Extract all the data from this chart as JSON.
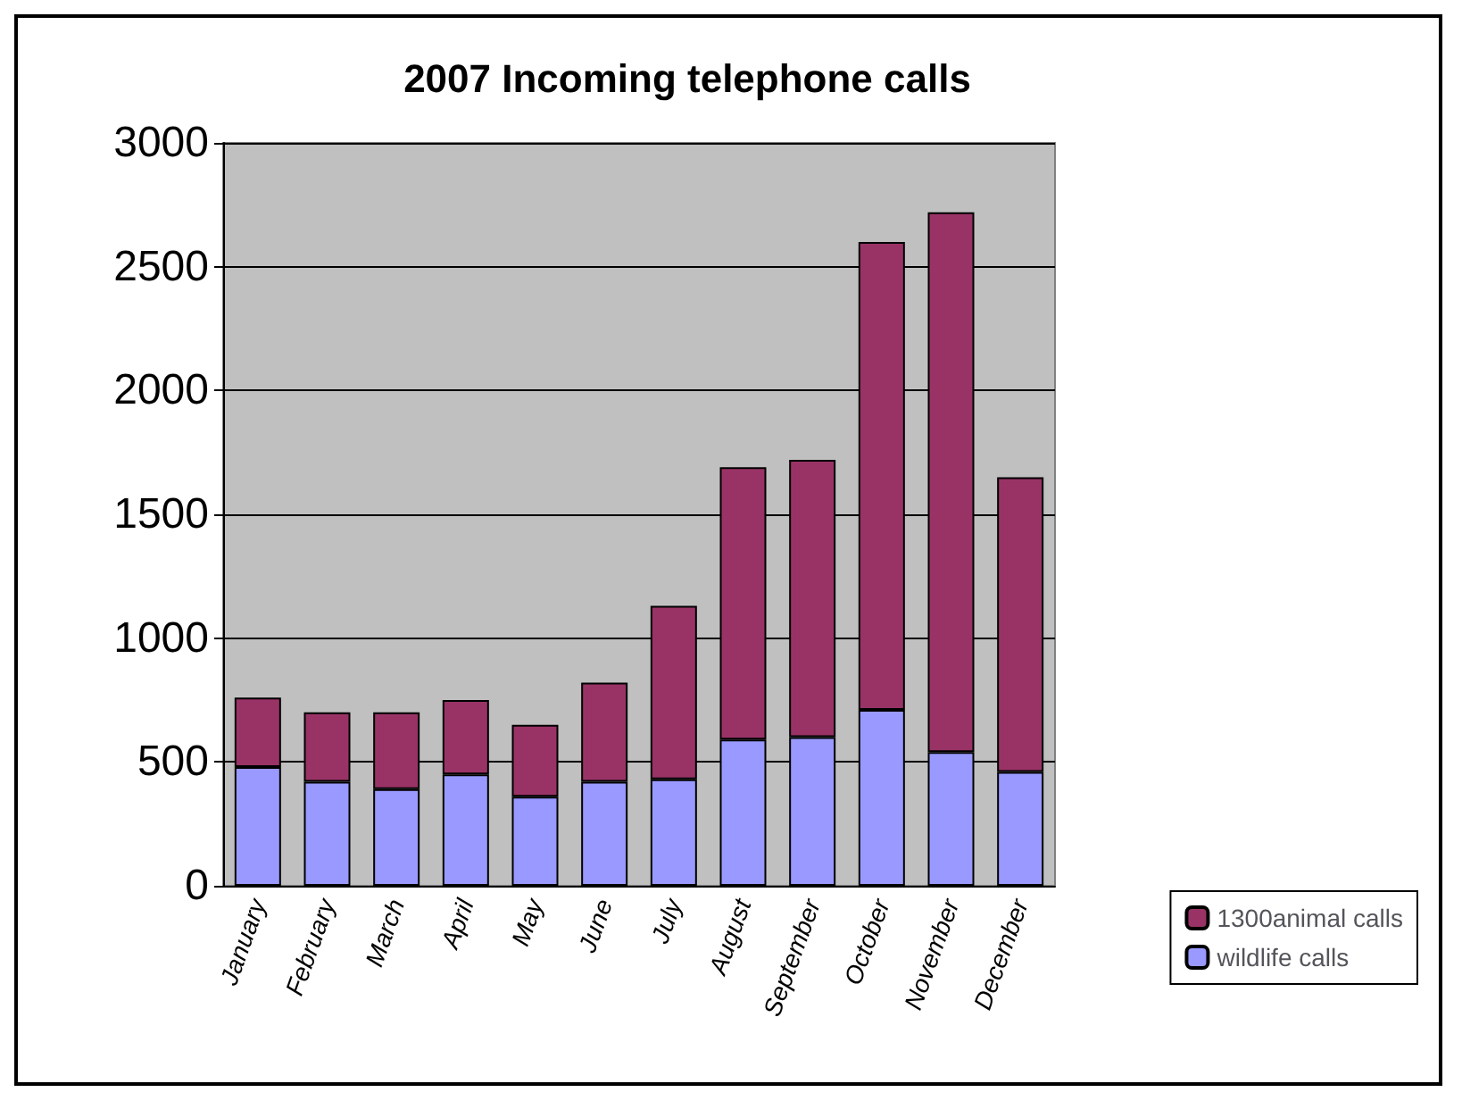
{
  "chart_data": {
    "type": "bar",
    "title": "2007 Incoming telephone calls",
    "stacked": true,
    "categories": [
      "January",
      "February",
      "March",
      "April",
      "May",
      "June",
      "July",
      "August",
      "September",
      "October",
      "November",
      "December"
    ],
    "series": [
      {
        "name": "wildlife calls",
        "color": "#9999ff",
        "values": [
          480,
          420,
          390,
          450,
          360,
          420,
          430,
          590,
          600,
          710,
          540,
          460
        ]
      },
      {
        "name": "1300animal calls",
        "color": "#993366",
        "values": [
          280,
          280,
          310,
          300,
          290,
          400,
          700,
          1100,
          1120,
          1890,
          2180,
          1190
        ]
      }
    ],
    "ylim": [
      0,
      3000
    ],
    "yticks": [
      0,
      500,
      1000,
      1500,
      2000,
      2500,
      3000
    ],
    "grid": "y",
    "legend": "bottom right"
  }
}
